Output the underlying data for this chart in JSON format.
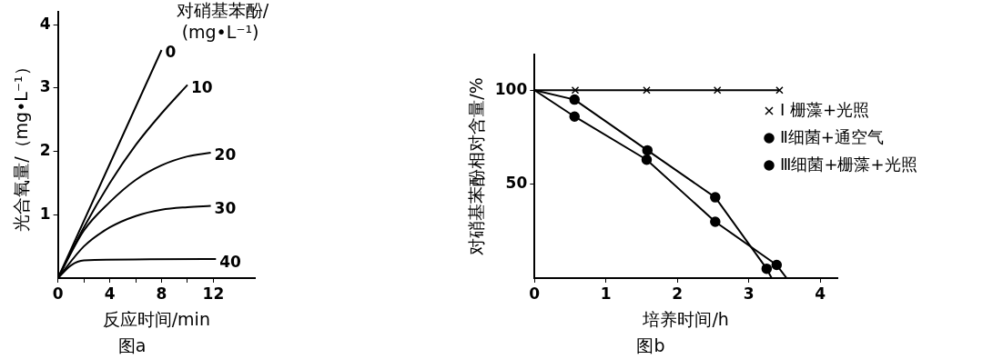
{
  "chart_data": [
    {
      "type": "line",
      "title": "图a",
      "xlabel": "反应时间/min",
      "ylabel": "光合氧量/（mg•L⁻¹）",
      "legend_title": "对硝基苯酚/(mg•L⁻¹)",
      "xlim": [
        0,
        15.2
      ],
      "ylim": [
        0,
        4.2
      ],
      "xticks": [
        0,
        {
          "value": 2,
          "label": null
        },
        4,
        {
          "value": 6,
          "label": null
        },
        8,
        {
          "value": 10,
          "label": null
        },
        12
      ],
      "yticks": [
        1,
        2,
        3,
        4
      ],
      "legend": false,
      "marker": "none",
      "series": [
        {
          "name": "0",
          "color": "#000000",
          "x": [
            0,
            8
          ],
          "values": [
            0,
            3.6
          ]
        },
        {
          "name": "10",
          "color": "#000000",
          "x": [
            0,
            2,
            4,
            6,
            8,
            10
          ],
          "values": [
            0,
            0.8,
            1.5,
            2.1,
            2.6,
            3.05
          ]
        },
        {
          "name": "20",
          "color": "#000000",
          "x": [
            0,
            2,
            4,
            6,
            8,
            10,
            11.8
          ],
          "values": [
            0,
            0.75,
            1.2,
            1.55,
            1.78,
            1.92,
            1.98
          ]
        },
        {
          "name": "30",
          "color": "#000000",
          "x": [
            0,
            2,
            4,
            6,
            8,
            10,
            11.8
          ],
          "values": [
            0,
            0.5,
            0.8,
            0.98,
            1.08,
            1.12,
            1.14
          ]
        },
        {
          "name": "40",
          "color": "#000000",
          "x": [
            0,
            1,
            2,
            12.2
          ],
          "values": [
            0,
            0.2,
            0.28,
            0.3
          ]
        }
      ]
    },
    {
      "type": "line",
      "title": "图b",
      "xlabel": "培养时间/h",
      "ylabel": "对硝基苯酚相对含量/%",
      "xlim": [
        0,
        4.24
      ],
      "ylim": [
        0,
        119
      ],
      "xticks": [
        0,
        1,
        2,
        3,
        4
      ],
      "yticks": [
        50,
        100
      ],
      "legend": "right",
      "series": [
        {
          "name": "Ⅰ 栅藻+光照",
          "color": "#000000",
          "marker": "cross",
          "x": [
            0,
            0.57,
            1.57,
            2.56,
            3.43
          ],
          "values": [
            100,
            100,
            100,
            100,
            100
          ]
        },
        {
          "name": "Ⅱ细菌+通空气",
          "color": "#000000",
          "marker": "circle",
          "x": [
            0,
            0.56,
            1.57,
            2.53,
            3.39,
            3.53
          ],
          "values": [
            100,
            86,
            63,
            30,
            7,
            0
          ]
        },
        {
          "name": "Ⅲ细菌+栅藻+光照",
          "color": "#000000",
          "marker": "circle",
          "x": [
            0,
            0.56,
            1.58,
            2.53,
            3.25,
            3.32
          ],
          "values": [
            100,
            95,
            68,
            43,
            5,
            0
          ]
        }
      ]
    }
  ]
}
